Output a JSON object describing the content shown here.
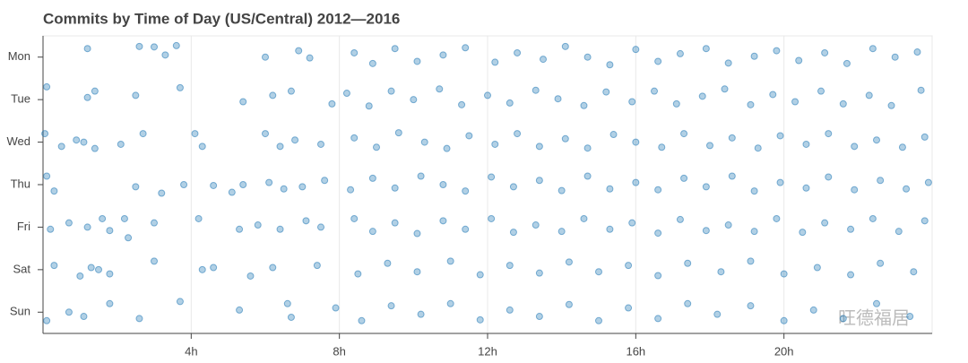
{
  "chart_data": {
    "type": "scatter",
    "title": "Commits by Time of Day (US/Central) 2012—2016",
    "color": "#1f77b4",
    "grid": true,
    "watermark": "旺德福居",
    "xlim": [
      0,
      24
    ],
    "xticks": [
      {
        "value": 4,
        "label": "4h"
      },
      {
        "value": 8,
        "label": "8h"
      },
      {
        "value": 12,
        "label": "12h"
      },
      {
        "value": 16,
        "label": "16h"
      },
      {
        "value": 20,
        "label": "20h"
      }
    ],
    "ylim": [
      -0.5,
      6.5
    ],
    "yticks": [
      {
        "value": 6,
        "label": "Mon"
      },
      {
        "value": 5,
        "label": "Tue"
      },
      {
        "value": 4,
        "label": "Wed"
      },
      {
        "value": 3,
        "label": "Thu"
      },
      {
        "value": 2,
        "label": "Fri"
      },
      {
        "value": 1,
        "label": "Sat"
      },
      {
        "value": 0,
        "label": "Sun"
      }
    ],
    "x": [
      1.2,
      2.6,
      3.0,
      3.6,
      3.3,
      6.0,
      6.9,
      7.2,
      8.4,
      8.9,
      9.5,
      10.1,
      10.8,
      11.4,
      12.2,
      12.8,
      13.5,
      14.1,
      14.7,
      15.3,
      16.0,
      16.6,
      17.2,
      17.9,
      18.5,
      19.2,
      19.8,
      20.4,
      21.1,
      21.7,
      22.4,
      23.0,
      23.6,
      0.1,
      1.2,
      1.4,
      2.5,
      3.7,
      5.4,
      6.2,
      6.7,
      7.8,
      8.2,
      8.8,
      9.4,
      10.0,
      10.7,
      11.3,
      12.0,
      12.6,
      13.3,
      13.9,
      14.6,
      15.2,
      15.9,
      16.5,
      17.1,
      17.8,
      18.4,
      19.1,
      19.7,
      20.3,
      21.0,
      21.6,
      22.3,
      22.9,
      23.7,
      0.05,
      0.5,
      0.9,
      1.1,
      1.4,
      2.1,
      2.7,
      4.1,
      4.3,
      6.0,
      6.4,
      6.8,
      7.5,
      8.4,
      9.0,
      9.6,
      10.3,
      10.9,
      11.5,
      12.2,
      12.8,
      13.4,
      14.1,
      14.7,
      15.4,
      16.0,
      16.7,
      17.3,
      18.0,
      18.6,
      19.3,
      19.9,
      20.6,
      21.2,
      21.9,
      22.5,
      23.2,
      23.8,
      0.1,
      0.3,
      2.5,
      3.2,
      3.8,
      4.6,
      5.1,
      5.4,
      6.1,
      6.5,
      7.0,
      7.6,
      8.3,
      8.9,
      9.5,
      10.2,
      10.8,
      11.4,
      12.1,
      12.7,
      13.4,
      14.0,
      14.7,
      15.3,
      16.0,
      16.6,
      17.3,
      17.9,
      18.6,
      19.2,
      19.9,
      20.6,
      21.2,
      21.9,
      22.6,
      23.3,
      23.9,
      0.2,
      0.7,
      1.2,
      1.6,
      1.8,
      2.2,
      2.3,
      3.0,
      4.2,
      5.3,
      5.8,
      6.4,
      7.1,
      7.5,
      8.4,
      8.9,
      9.5,
      10.1,
      10.8,
      11.4,
      12.1,
      12.7,
      13.3,
      14.0,
      14.6,
      15.3,
      15.9,
      16.6,
      17.2,
      17.9,
      18.5,
      19.2,
      19.8,
      20.5,
      21.1,
      21.8,
      22.4,
      23.1,
      23.8,
      0.3,
      1.0,
      1.3,
      1.5,
      1.8,
      3.0,
      4.3,
      4.6,
      5.6,
      6.2,
      7.4,
      8.5,
      9.3,
      10.1,
      11.0,
      11.8,
      12.6,
      13.4,
      14.2,
      15.0,
      15.8,
      16.6,
      17.4,
      18.3,
      19.1,
      20.0,
      20.9,
      21.8,
      22.6,
      23.5,
      0.1,
      0.7,
      1.1,
      1.8,
      2.6,
      3.7,
      5.3,
      6.6,
      6.7,
      7.9,
      8.6,
      9.4,
      10.2,
      11.0,
      11.8,
      12.6,
      13.4,
      14.2,
      15.0,
      15.8,
      16.6,
      17.4,
      18.2,
      19.1,
      20.0,
      20.8,
      21.6,
      22.5,
      23.4
    ],
    "values": [
      6.2,
      6.25,
      6.24,
      6.27,
      6.05,
      6.0,
      6.15,
      5.98,
      6.1,
      5.85,
      6.2,
      5.9,
      6.05,
      6.22,
      5.88,
      6.1,
      5.95,
      6.25,
      6.0,
      5.82,
      6.18,
      5.9,
      6.08,
      6.2,
      5.86,
      6.02,
      6.15,
      5.92,
      6.1,
      5.85,
      6.2,
      6.0,
      6.12,
      5.3,
      5.05,
      5.2,
      5.1,
      5.28,
      4.95,
      5.1,
      5.2,
      4.9,
      5.15,
      4.85,
      5.2,
      5.0,
      5.25,
      4.88,
      5.1,
      4.92,
      5.22,
      5.02,
      4.86,
      5.18,
      4.95,
      5.2,
      4.9,
      5.08,
      5.25,
      4.88,
      5.12,
      4.95,
      5.2,
      4.9,
      5.1,
      4.86,
      5.22,
      4.2,
      3.9,
      4.05,
      4.0,
      3.85,
      3.95,
      4.2,
      4.2,
      3.9,
      4.2,
      3.9,
      4.05,
      3.95,
      4.1,
      3.88,
      4.22,
      4.0,
      3.85,
      4.15,
      3.95,
      4.2,
      3.9,
      4.08,
      3.86,
      4.18,
      4.0,
      3.88,
      4.2,
      3.92,
      4.1,
      3.86,
      4.15,
      3.95,
      4.2,
      3.9,
      4.05,
      3.88,
      4.12,
      3.2,
      2.85,
      2.95,
      2.8,
      3.0,
      2.98,
      2.82,
      3.0,
      3.05,
      2.9,
      2.95,
      3.1,
      2.88,
      3.15,
      2.92,
      3.2,
      3.0,
      2.85,
      3.18,
      2.95,
      3.1,
      2.86,
      3.2,
      2.9,
      3.05,
      2.88,
      3.15,
      2.95,
      3.2,
      2.85,
      3.05,
      2.92,
      3.18,
      2.88,
      3.1,
      2.9,
      3.05,
      1.95,
      2.1,
      2.0,
      2.2,
      1.92,
      2.2,
      1.75,
      2.1,
      2.2,
      1.95,
      2.05,
      1.95,
      2.15,
      2.0,
      2.2,
      1.9,
      2.1,
      1.85,
      2.15,
      1.95,
      2.2,
      1.88,
      2.05,
      1.9,
      2.2,
      1.95,
      2.1,
      1.86,
      2.18,
      1.92,
      2.05,
      1.9,
      2.2,
      1.88,
      2.1,
      1.95,
      2.2,
      1.9,
      2.15,
      1.1,
      0.85,
      1.05,
      1.0,
      0.9,
      1.2,
      1.0,
      1.05,
      0.85,
      1.05,
      1.1,
      0.9,
      1.15,
      0.95,
      1.2,
      0.88,
      1.1,
      0.92,
      1.18,
      0.95,
      1.1,
      0.86,
      1.15,
      0.95,
      1.2,
      0.9,
      1.05,
      0.88,
      1.15,
      0.95,
      -0.2,
      0.0,
      -0.1,
      0.2,
      -0.15,
      0.25,
      0.05,
      0.2,
      -0.12,
      0.1,
      -0.2,
      0.15,
      -0.05,
      0.2,
      -0.18,
      0.05,
      -0.1,
      0.18,
      -0.2,
      0.1,
      -0.15,
      0.2,
      -0.05,
      0.15,
      -0.2,
      0.05,
      -0.15,
      0.2,
      -0.1
    ]
  }
}
